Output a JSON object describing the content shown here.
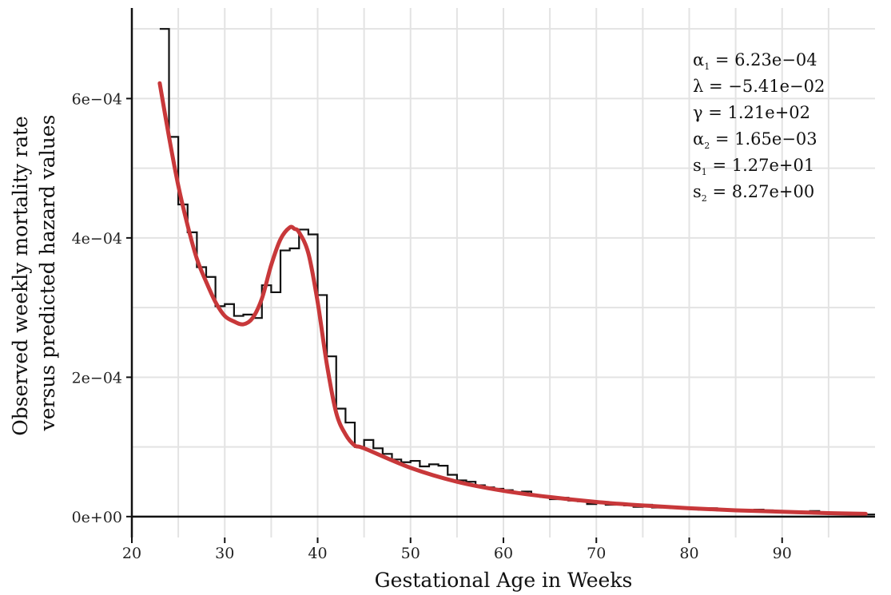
{
  "chart_data": {
    "type": "line",
    "title": "",
    "xlabel": "Gestational Age in Weeks",
    "ylabel_lines": [
      "Observed weekly mortality rate",
      "versus predicted hazard values"
    ],
    "xlim": [
      20,
      100
    ],
    "ylim": [
      -3e-05,
      0.00073
    ],
    "x_ticks": [
      20,
      30,
      40,
      50,
      60,
      70,
      80,
      90
    ],
    "x_tick_labels": [
      "20",
      "30",
      "40",
      "50",
      "60",
      "70",
      "80",
      "90"
    ],
    "y_ticks": [
      0,
      0.0002,
      0.0004,
      0.0006
    ],
    "y_tick_labels": [
      "0e+00",
      "2e−04",
      "4e−04",
      "6e−04"
    ],
    "grid": true,
    "colors": {
      "observed": "#111111",
      "predicted": "#c8383a",
      "grid": "#e3e3e3"
    },
    "series": [
      {
        "name": "",
        "style": "step",
        "x": [
          23,
          24,
          25,
          26,
          27,
          28,
          29,
          30,
          31,
          32,
          33,
          34,
          35,
          36,
          37,
          38,
          39,
          40,
          41,
          42,
          43,
          44,
          45,
          46,
          47,
          48,
          49,
          50,
          51,
          52,
          53,
          54,
          55,
          56,
          57,
          58,
          59,
          60,
          61,
          62,
          63,
          64,
          65,
          66,
          67,
          68,
          69,
          70,
          71,
          72,
          73,
          74,
          75,
          76,
          77,
          78,
          79,
          80,
          81,
          82,
          83,
          84,
          85,
          86,
          87,
          88,
          89,
          90,
          91,
          92,
          93,
          94,
          95,
          96,
          97,
          98,
          99
        ],
        "values": [
          0.0007,
          0.000545,
          0.000448,
          0.000408,
          0.000358,
          0.000344,
          0.000302,
          0.000305,
          0.000288,
          0.00029,
          0.000285,
          0.000332,
          0.000322,
          0.000382,
          0.000385,
          0.000412,
          0.000405,
          0.000318,
          0.00023,
          0.000155,
          0.000135,
          0.0001,
          0.00011,
          9.8e-05,
          9e-05,
          8.2e-05,
          7.8e-05,
          8e-05,
          7.2e-05,
          7.5e-05,
          7.3e-05,
          6e-05,
          5.2e-05,
          5e-05,
          4.5e-05,
          4.2e-05,
          4e-05,
          3.8e-05,
          3.5e-05,
          3.6e-05,
          3e-05,
          2.8e-05,
          2.5e-05,
          2.7e-05,
          2.3e-05,
          2.2e-05,
          1.8e-05,
          2e-05,
          1.7e-05,
          1.8e-05,
          1.6e-05,
          1.4e-05,
          1.7e-05,
          1.3e-05,
          1.4e-05,
          1.2e-05,
          1.3e-05,
          1.1e-05,
          1e-05,
          1.2e-05,
          9e-06,
          1e-05,
          1e-05,
          8e-06,
          1e-05,
          9e-06,
          7e-06,
          7e-06,
          6e-06,
          5e-06,
          8e-06,
          5e-06,
          4e-06,
          6e-06,
          4e-06,
          3e-06,
          3e-06
        ]
      },
      {
        "name": "",
        "style": "line",
        "x": [
          23,
          24,
          25,
          26,
          27,
          28,
          29,
          30,
          31,
          32,
          33,
          34,
          35,
          36,
          37,
          37.5,
          38,
          39,
          40,
          41,
          42,
          43,
          44,
          45,
          50,
          55,
          60,
          65,
          70,
          75,
          80,
          85,
          90,
          95,
          99
        ],
        "values": [
          0.000622,
          0.000545,
          0.000475,
          0.000418,
          0.00037,
          0.000337,
          0.000308,
          0.000288,
          0.00028,
          0.000276,
          0.000285,
          0.000313,
          0.000361,
          0.000398,
          0.000415,
          0.000413,
          0.000408,
          0.000378,
          0.000308,
          0.000218,
          0.000149,
          0.000118,
          0.000102,
          9.8e-05,
          7e-05,
          5e-05,
          3.7e-05,
          2.8e-05,
          2.1e-05,
          1.6e-05,
          1.2e-05,
          9e-06,
          7e-06,
          5e-06,
          4e-06
        ]
      }
    ],
    "annotations": [
      {
        "sym": "α",
        "sub": "1",
        "rest": " = 6.23e−04"
      },
      {
        "sym": "λ",
        "sub": "",
        "rest": " = −5.41e−02"
      },
      {
        "sym": "γ",
        "sub": "",
        "rest": " = 1.21e+02"
      },
      {
        "sym": "α",
        "sub": "2",
        "rest": " = 1.65e−03"
      },
      {
        "sym": "s",
        "sub": "1",
        "rest": " = 1.27e+01"
      },
      {
        "sym": "s",
        "sub": "2",
        "rest": " = 8.27e+00"
      }
    ]
  }
}
